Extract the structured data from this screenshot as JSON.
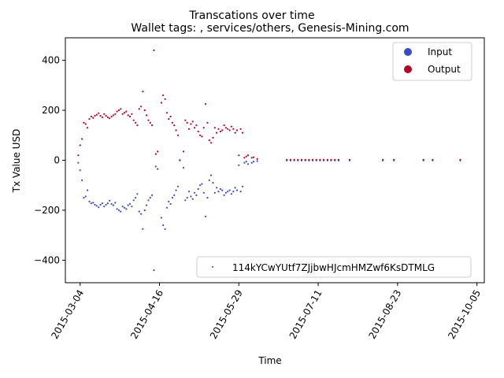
{
  "chart_data": {
    "type": "scatter",
    "title": "Transcations over time",
    "subtitle": "Wallet tags: , services/others, Genesis-Mining.com",
    "xlabel": "Time",
    "ylabel": "Tx Value USD",
    "xlim": [
      "2015-02-24",
      "2015-10-09"
    ],
    "ylim": [
      -490,
      490
    ],
    "x_ticks": [
      "2015-03-04",
      "2015-04-16",
      "2015-05-29",
      "2015-07-11",
      "2015-08-23",
      "2015-10-05"
    ],
    "y_ticks": [
      -400,
      -200,
      0,
      200,
      400
    ],
    "grid": false,
    "legend": [
      {
        "label": "Input",
        "color": "#3b4cc0"
      },
      {
        "label": "Output",
        "color": "#b40426"
      }
    ],
    "legend_placement": "top-right",
    "annotation_legend": {
      "label": "114kYCwYUtf7ZJjbwHJcmHMZwf6KsDTMLG",
      "color": "#3b4cc0",
      "placement": "bottom-right"
    },
    "series": [
      {
        "name": "Input",
        "color": "#3b4cc0",
        "points": [
          [
            "2015-03-03",
            -10
          ],
          [
            "2015-03-04",
            -40
          ],
          [
            "2015-03-05",
            -80
          ],
          [
            "2015-03-06",
            -150
          ],
          [
            "2015-03-07",
            -145
          ],
          [
            "2015-03-08",
            -120
          ],
          [
            "2015-03-09",
            -165
          ],
          [
            "2015-03-10",
            -172
          ],
          [
            "2015-03-11",
            -170
          ],
          [
            "2015-03-12",
            -178
          ],
          [
            "2015-03-13",
            -182
          ],
          [
            "2015-03-14",
            -188
          ],
          [
            "2015-03-15",
            -178
          ],
          [
            "2015-03-16",
            -172
          ],
          [
            "2015-03-17",
            -185
          ],
          [
            "2015-03-18",
            -178
          ],
          [
            "2015-03-19",
            -172
          ],
          [
            "2015-03-20",
            -162
          ],
          [
            "2015-03-21",
            -175
          ],
          [
            "2015-03-22",
            -180
          ],
          [
            "2015-03-23",
            -170
          ],
          [
            "2015-03-24",
            -195
          ],
          [
            "2015-03-25",
            -200
          ],
          [
            "2015-03-26",
            -205
          ],
          [
            "2015-03-27",
            -185
          ],
          [
            "2015-03-28",
            -190
          ],
          [
            "2015-03-29",
            -195
          ],
          [
            "2015-03-30",
            -180
          ],
          [
            "2015-03-31",
            -175
          ],
          [
            "2015-04-01",
            -185
          ],
          [
            "2015-04-02",
            -160
          ],
          [
            "2015-04-03",
            -150
          ],
          [
            "2015-04-04",
            -135
          ],
          [
            "2015-04-05",
            -205
          ],
          [
            "2015-04-06",
            -215
          ],
          [
            "2015-04-07",
            -275
          ],
          [
            "2015-04-08",
            -200
          ],
          [
            "2015-04-09",
            -180
          ],
          [
            "2015-04-10",
            -160
          ],
          [
            "2015-04-11",
            -150
          ],
          [
            "2015-04-12",
            -140
          ],
          [
            "2015-04-13",
            -440
          ],
          [
            "2015-04-14",
            -25
          ],
          [
            "2015-04-15",
            -35
          ],
          [
            "2015-04-17",
            -230
          ],
          [
            "2015-04-18",
            -260
          ],
          [
            "2015-04-19",
            -275
          ],
          [
            "2015-04-20",
            -190
          ],
          [
            "2015-04-21",
            -165
          ],
          [
            "2015-04-22",
            -175
          ],
          [
            "2015-04-23",
            -150
          ],
          [
            "2015-04-24",
            -140
          ],
          [
            "2015-04-25",
            -120
          ],
          [
            "2015-04-26",
            -105
          ],
          [
            "2015-04-27",
            0
          ],
          [
            "2015-04-29",
            -30
          ],
          [
            "2015-04-30",
            -160
          ],
          [
            "2015-05-01",
            -150
          ],
          [
            "2015-05-02",
            -125
          ],
          [
            "2015-05-03",
            -145
          ],
          [
            "2015-05-04",
            -155
          ],
          [
            "2015-05-05",
            -130
          ],
          [
            "2015-05-06",
            -140
          ],
          [
            "2015-05-07",
            -115
          ],
          [
            "2015-05-08",
            -100
          ],
          [
            "2015-05-09",
            -95
          ],
          [
            "2015-05-10",
            -130
          ],
          [
            "2015-05-11",
            -225
          ],
          [
            "2015-05-12",
            -150
          ],
          [
            "2015-05-13",
            -80
          ],
          [
            "2015-05-14",
            -60
          ],
          [
            "2015-05-15",
            -90
          ],
          [
            "2015-05-16",
            -130
          ],
          [
            "2015-05-17",
            -110
          ],
          [
            "2015-05-18",
            -125
          ],
          [
            "2015-05-19",
            -115
          ],
          [
            "2015-05-20",
            -120
          ],
          [
            "2015-05-21",
            -140
          ],
          [
            "2015-05-22",
            -130
          ],
          [
            "2015-05-23",
            -125
          ],
          [
            "2015-05-24",
            -120
          ],
          [
            "2015-05-25",
            -135
          ],
          [
            "2015-05-26",
            -125
          ],
          [
            "2015-05-27",
            -110
          ],
          [
            "2015-05-28",
            -120
          ],
          [
            "2015-05-29",
            -20
          ],
          [
            "2015-05-30",
            -125
          ],
          [
            "2015-05-31",
            -105
          ],
          [
            "2015-06-01",
            -10
          ],
          [
            "2015-06-02",
            -5
          ],
          [
            "2015-06-03",
            -15
          ],
          [
            "2015-06-05",
            -10
          ],
          [
            "2015-06-06",
            -5
          ],
          [
            "2015-06-08",
            -3
          ],
          [
            "2015-06-24",
            -1
          ],
          [
            "2015-06-26",
            -1
          ],
          [
            "2015-06-28",
            -1
          ],
          [
            "2015-06-30",
            -1
          ],
          [
            "2015-07-02",
            -1
          ],
          [
            "2015-07-04",
            -1
          ],
          [
            "2015-07-06",
            -1
          ],
          [
            "2015-07-08",
            -1
          ],
          [
            "2015-07-10",
            -1
          ],
          [
            "2015-07-12",
            -1
          ],
          [
            "2015-07-14",
            -1
          ],
          [
            "2015-07-16",
            -1
          ],
          [
            "2015-07-18",
            -1
          ],
          [
            "2015-07-20",
            -1
          ],
          [
            "2015-07-22",
            -1
          ],
          [
            "2015-07-28",
            -1
          ],
          [
            "2015-08-15",
            -1
          ],
          [
            "2015-08-21",
            -1
          ],
          [
            "2015-09-06",
            -1
          ],
          [
            "2015-09-11",
            -1
          ],
          [
            "2015-09-26",
            -1
          ]
        ]
      },
      {
        "name": "Output",
        "color": "#b40426",
        "points": [
          [
            "2015-03-03",
            20
          ],
          [
            "2015-03-04",
            60
          ],
          [
            "2015-03-05",
            85
          ],
          [
            "2015-03-06",
            150
          ],
          [
            "2015-03-07",
            145
          ],
          [
            "2015-03-08",
            130
          ],
          [
            "2015-03-09",
            165
          ],
          [
            "2015-03-10",
            175
          ],
          [
            "2015-03-11",
            170
          ],
          [
            "2015-03-12",
            178
          ],
          [
            "2015-03-13",
            182
          ],
          [
            "2015-03-14",
            188
          ],
          [
            "2015-03-15",
            178
          ],
          [
            "2015-03-16",
            172
          ],
          [
            "2015-03-17",
            185
          ],
          [
            "2015-03-18",
            178
          ],
          [
            "2015-03-19",
            172
          ],
          [
            "2015-03-20",
            168
          ],
          [
            "2015-03-21",
            175
          ],
          [
            "2015-03-22",
            180
          ],
          [
            "2015-03-23",
            185
          ],
          [
            "2015-03-24",
            195
          ],
          [
            "2015-03-25",
            200
          ],
          [
            "2015-03-26",
            205
          ],
          [
            "2015-03-27",
            185
          ],
          [
            "2015-03-28",
            190
          ],
          [
            "2015-03-29",
            195
          ],
          [
            "2015-03-30",
            180
          ],
          [
            "2015-03-31",
            175
          ],
          [
            "2015-04-01",
            185
          ],
          [
            "2015-04-02",
            160
          ],
          [
            "2015-04-03",
            150
          ],
          [
            "2015-04-04",
            140
          ],
          [
            "2015-04-05",
            205
          ],
          [
            "2015-04-06",
            215
          ],
          [
            "2015-04-07",
            275
          ],
          [
            "2015-04-08",
            200
          ],
          [
            "2015-04-09",
            180
          ],
          [
            "2015-04-10",
            160
          ],
          [
            "2015-04-11",
            150
          ],
          [
            "2015-04-12",
            140
          ],
          [
            "2015-04-13",
            440
          ],
          [
            "2015-04-14",
            25
          ],
          [
            "2015-04-15",
            35
          ],
          [
            "2015-04-17",
            230
          ],
          [
            "2015-04-18",
            260
          ],
          [
            "2015-04-19",
            245
          ],
          [
            "2015-04-20",
            190
          ],
          [
            "2015-04-21",
            165
          ],
          [
            "2015-04-22",
            175
          ],
          [
            "2015-04-23",
            150
          ],
          [
            "2015-04-24",
            140
          ],
          [
            "2015-04-25",
            120
          ],
          [
            "2015-04-26",
            100
          ],
          [
            "2015-04-27",
            0
          ],
          [
            "2015-04-29",
            35
          ],
          [
            "2015-04-30",
            160
          ],
          [
            "2015-05-01",
            150
          ],
          [
            "2015-05-02",
            125
          ],
          [
            "2015-05-03",
            145
          ],
          [
            "2015-05-04",
            155
          ],
          [
            "2015-05-05",
            130
          ],
          [
            "2015-05-06",
            140
          ],
          [
            "2015-05-07",
            115
          ],
          [
            "2015-05-08",
            100
          ],
          [
            "2015-05-09",
            95
          ],
          [
            "2015-05-10",
            130
          ],
          [
            "2015-05-11",
            225
          ],
          [
            "2015-05-12",
            150
          ],
          [
            "2015-05-13",
            80
          ],
          [
            "2015-05-14",
            70
          ],
          [
            "2015-05-15",
            90
          ],
          [
            "2015-05-16",
            130
          ],
          [
            "2015-05-17",
            110
          ],
          [
            "2015-05-18",
            125
          ],
          [
            "2015-05-19",
            115
          ],
          [
            "2015-05-20",
            120
          ],
          [
            "2015-05-21",
            140
          ],
          [
            "2015-05-22",
            130
          ],
          [
            "2015-05-23",
            125
          ],
          [
            "2015-05-24",
            120
          ],
          [
            "2015-05-25",
            135
          ],
          [
            "2015-05-26",
            125
          ],
          [
            "2015-05-27",
            110
          ],
          [
            "2015-05-28",
            120
          ],
          [
            "2015-05-29",
            20
          ],
          [
            "2015-05-30",
            125
          ],
          [
            "2015-05-31",
            110
          ],
          [
            "2015-06-01",
            10
          ],
          [
            "2015-06-02",
            15
          ],
          [
            "2015-06-03",
            20
          ],
          [
            "2015-06-05",
            10
          ],
          [
            "2015-06-06",
            12
          ],
          [
            "2015-06-08",
            5
          ],
          [
            "2015-06-24",
            2
          ],
          [
            "2015-06-26",
            2
          ],
          [
            "2015-06-28",
            2
          ],
          [
            "2015-06-30",
            2
          ],
          [
            "2015-07-02",
            2
          ],
          [
            "2015-07-04",
            2
          ],
          [
            "2015-07-06",
            2
          ],
          [
            "2015-07-08",
            2
          ],
          [
            "2015-07-10",
            2
          ],
          [
            "2015-07-12",
            2
          ],
          [
            "2015-07-14",
            2
          ],
          [
            "2015-07-16",
            2
          ],
          [
            "2015-07-18",
            2
          ],
          [
            "2015-07-20",
            2
          ],
          [
            "2015-07-22",
            2
          ],
          [
            "2015-07-28",
            2
          ],
          [
            "2015-08-15",
            2
          ],
          [
            "2015-08-21",
            2
          ],
          [
            "2015-09-06",
            2
          ],
          [
            "2015-09-11",
            2
          ],
          [
            "2015-09-26",
            2
          ]
        ]
      }
    ]
  }
}
